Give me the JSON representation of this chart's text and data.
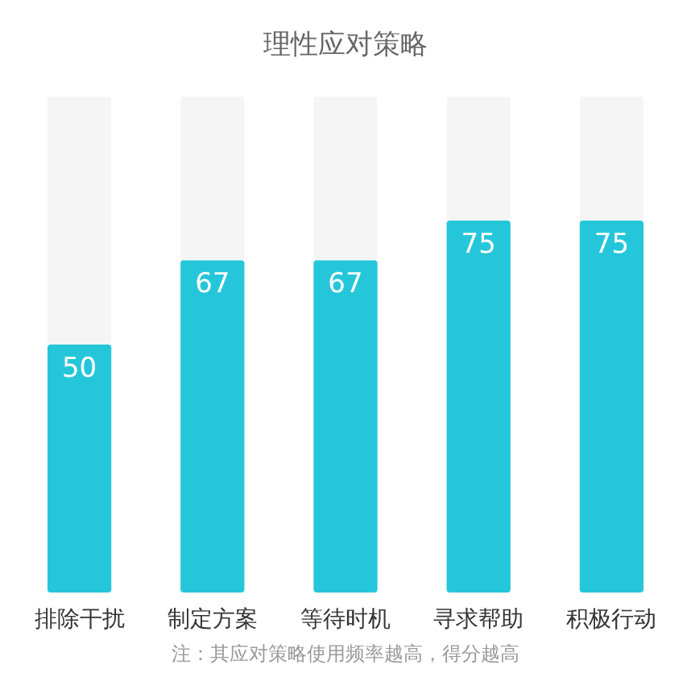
{
  "chart_data": {
    "type": "bar",
    "title": "理性应对策略",
    "categories": [
      "排除干扰",
      "制定方案",
      "等待时机",
      "寻求帮助",
      "积极行动"
    ],
    "stacked": true,
    "ylim": [
      0,
      100
    ],
    "tick_labels": "x",
    "series": [
      {
        "color": "#26c6da",
        "values": [
          50,
          67,
          67,
          75,
          75
        ],
        "value_labels": [
          "50",
          "67",
          "67",
          "75",
          "75"
        ]
      },
      {
        "color": "#f5f5f5",
        "values": [
          50,
          33,
          33,
          25,
          25
        ]
      }
    ],
    "annotations": [
      "注：其应对策略使用频率越高，得分越高"
    ]
  }
}
